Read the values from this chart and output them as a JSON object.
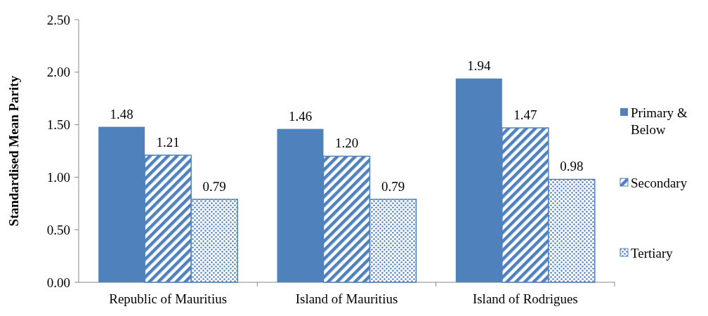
{
  "chart_data": {
    "type": "bar",
    "ylabel": "Standardised Mean Parity",
    "categories": [
      "Republic of Mauritius",
      "Island of Mauritius",
      "Island of Rodrigues"
    ],
    "series": [
      {
        "name": "Primary & Below",
        "color": "#4f81bd",
        "values": [
          1.48,
          1.46,
          1.94
        ],
        "value_labels": [
          "1.48",
          "1.46",
          "1.94"
        ]
      },
      {
        "name": "Secondary",
        "color": "#4f81bd",
        "values": [
          1.21,
          1.2,
          1.47
        ],
        "value_labels": [
          "1.21",
          "1.20",
          "1.47"
        ]
      },
      {
        "name": "Tertiary",
        "color": "#4f81bd",
        "values": [
          0.79,
          0.79,
          0.98
        ],
        "value_labels": [
          "0.79",
          "0.79",
          "0.98"
        ]
      }
    ],
    "ylim": [
      0,
      2.5
    ],
    "yticks": [
      {
        "value": 0,
        "label": "0.00"
      },
      {
        "value": 0.5,
        "label": "0.50"
      },
      {
        "value": 1,
        "label": "1.00"
      },
      {
        "value": 1.5,
        "label": "1.50"
      },
      {
        "value": 2,
        "label": "2.00"
      },
      {
        "value": 2.5,
        "label": "2.50"
      }
    ],
    "legend": "right",
    "grid": false
  }
}
